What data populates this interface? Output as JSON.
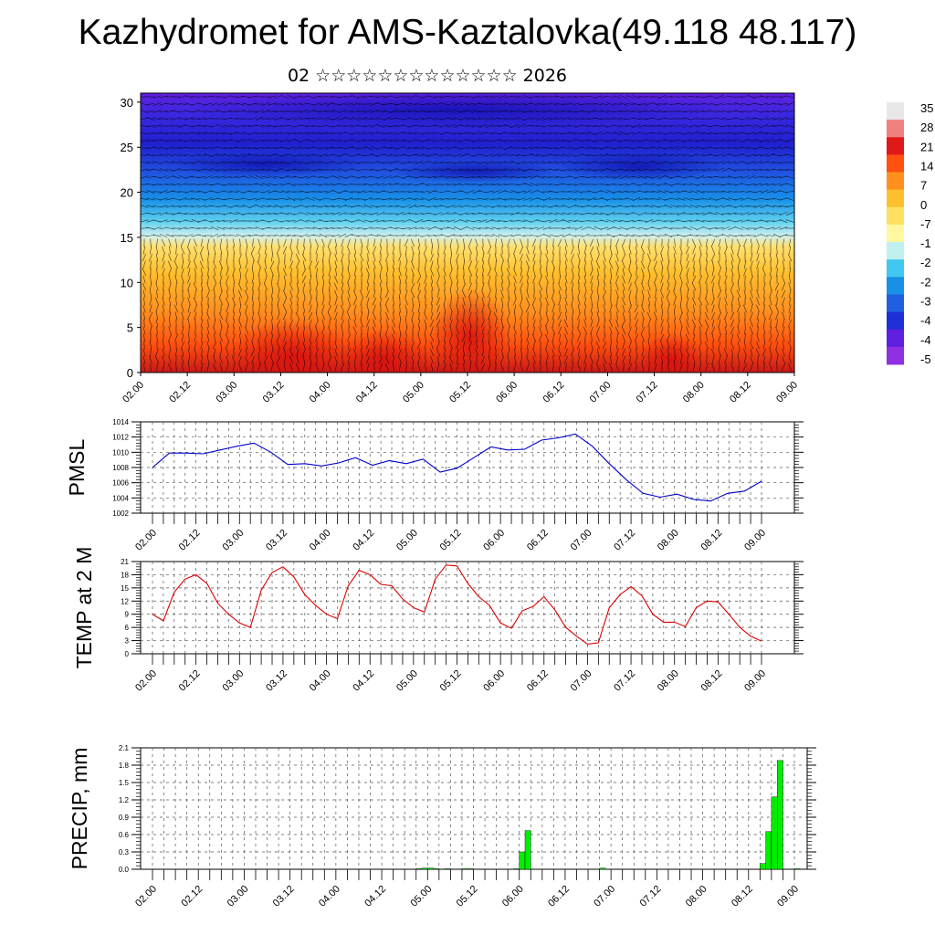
{
  "title": "Kazhydromet for AMS-Kaztalovka(49.118 48.117)",
  "subtitle": "02 ☆☆☆☆☆☆☆☆☆☆☆☆☆ 2026",
  "chart_data": [
    {
      "type": "heatmap",
      "name": "vertical-cross-section",
      "x_tick_labels": [
        "02.00",
        "02.12",
        "03.00",
        "03.12",
        "04.00",
        "04.12",
        "05.00",
        "05.12",
        "06.00",
        "06.12",
        "07.00",
        "07.12",
        "08.00",
        "08.12",
        "09.00"
      ],
      "y_ticks": [
        0,
        5,
        10,
        15,
        20,
        25,
        30
      ],
      "ylim": [
        0,
        31
      ],
      "colorbar_labels": [
        "35",
        "28",
        "21",
        "14",
        "7",
        "0",
        "-7",
        "-1",
        "-2",
        "-2",
        "-3",
        "-4",
        "-4",
        "-5"
      ],
      "colorscale": [
        "#e8e8e8",
        "#f08080",
        "#e01818",
        "#ff5010",
        "#ff9020",
        "#ffc030",
        "#ffe060",
        "#fff8a0",
        "#c0f0f0",
        "#40c8f0",
        "#1890e8",
        "#2060e0",
        "#2030d8",
        "#6020e0",
        "#9030e0"
      ]
    },
    {
      "type": "line",
      "name": "pmsl",
      "ylabel": "PMSL",
      "ylim": [
        1002,
        1014
      ],
      "y_ticks": [
        1002,
        1004,
        1006,
        1008,
        1010,
        1012,
        1014
      ],
      "x_tick_labels": [
        "02.00",
        "02.12",
        "03.00",
        "03.12",
        "04.00",
        "04.12",
        "05.00",
        "05.12",
        "06.00",
        "06.12",
        "07.00",
        "07.12",
        "08.00",
        "08.12",
        "09.00"
      ],
      "color": "#0000cc",
      "values": [
        1008.0,
        1009.9,
        1009.9,
        1009.8,
        1010.3,
        1010.8,
        1011.2,
        1010.0,
        1008.4,
        1008.5,
        1008.2,
        1008.6,
        1009.3,
        1008.3,
        1008.9,
        1008.5,
        1009.1,
        1007.4,
        1007.9,
        1009.3,
        1010.7,
        1010.3,
        1010.4,
        1011.6,
        1011.9,
        1012.4,
        1010.8,
        1008.5,
        1006.4,
        1004.6,
        1004.1,
        1004.5,
        1003.8,
        1003.6,
        1004.6,
        1004.9,
        1006.2
      ]
    },
    {
      "type": "line",
      "name": "temp-2m",
      "ylabel": "TEMP at 2 M",
      "ylim": [
        0,
        21
      ],
      "y_ticks": [
        0,
        3,
        6,
        9,
        12,
        15,
        18,
        21
      ],
      "x_tick_labels": [
        "02.00",
        "02.12",
        "03.00",
        "03.12",
        "04.00",
        "04.12",
        "05.00",
        "05.12",
        "06.00",
        "06.12",
        "07.00",
        "07.12",
        "08.00",
        "08.12",
        "09.00"
      ],
      "color": "#dd0000",
      "values": [
        9.0,
        7.5,
        14.0,
        17.0,
        18.0,
        16.0,
        11.5,
        9.0,
        7.0,
        6.0,
        14.5,
        18.5,
        19.8,
        17.5,
        13.5,
        11.0,
        9.0,
        8.0,
        15.5,
        19.0,
        18.0,
        15.8,
        15.5,
        12.5,
        10.5,
        9.5,
        17.0,
        20.2,
        20.0,
        16.0,
        13.0,
        11.0,
        7.0,
        5.8,
        9.8,
        10.8,
        13.0,
        10.0,
        6.0,
        4.0,
        2.2,
        2.5,
        10.5,
        13.5,
        15.3,
        13.2,
        9.0,
        7.2,
        7.2,
        6.2,
        10.5,
        12.0,
        11.8,
        9.0,
        6.0,
        4.0,
        2.9
      ]
    },
    {
      "type": "bar",
      "name": "precip",
      "ylabel": "PRECIP, mm",
      "ylim": [
        0,
        2.1
      ],
      "y_ticks": [
        "0.0",
        "0.3",
        "0.6",
        "0.9",
        "1.2",
        "1.5",
        "1.8",
        "2.1"
      ],
      "x_tick_labels": [
        "02.00",
        "02.12",
        "03.00",
        "03.12",
        "04.00",
        "04.12",
        "05.00",
        "05.12",
        "06.00",
        "06.12",
        "07.00",
        "07.12",
        "08.00",
        "08.12",
        "09.00"
      ],
      "color": "#00ee00",
      "values": [
        0,
        0,
        0,
        0,
        0,
        0,
        0,
        0,
        0,
        0,
        0,
        0,
        0,
        0,
        0,
        0,
        0,
        0,
        0,
        0,
        0,
        0,
        0,
        0,
        0,
        0,
        0,
        0,
        0,
        0,
        0,
        0,
        0,
        0,
        0,
        0,
        0,
        0,
        0,
        0,
        0,
        0,
        0,
        0,
        0,
        0,
        0.01,
        0.02,
        0.02,
        0.01,
        0,
        0.01,
        0,
        0,
        0.01,
        0.01,
        0,
        0,
        0,
        0,
        0,
        0,
        0,
        0.01,
        0.3,
        0.67,
        0,
        0,
        0,
        0,
        0,
        0,
        0,
        0,
        0,
        0,
        0,
        0,
        0.02,
        0,
        0,
        0,
        0,
        0,
        0,
        0,
        0,
        0,
        0,
        0,
        0,
        0,
        0,
        0,
        0,
        0,
        0,
        0,
        0,
        0,
        0,
        0,
        0,
        0,
        0,
        0,
        0.1,
        0.65,
        1.25,
        1.88,
        0,
        0,
        0.01,
        0
      ]
    }
  ]
}
